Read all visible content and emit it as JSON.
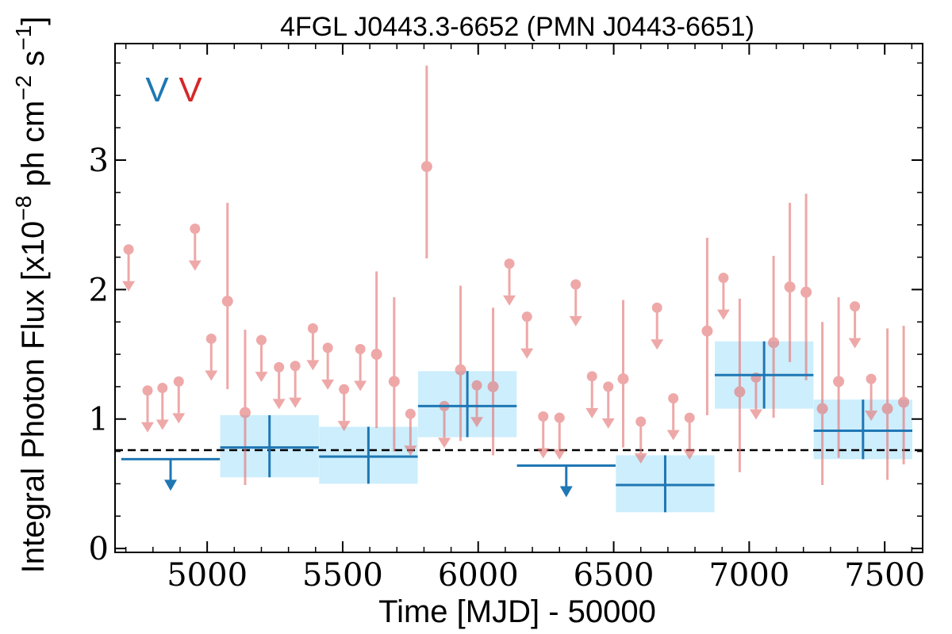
{
  "chart_data": {
    "type": "scatter",
    "title": "4FGL J0443.3-6652 (PMN J0443-6651)",
    "xlabel": "Time [MJD] - 50000",
    "ylabel_parts": {
      "main": "Integral Photon Flux [x10",
      "exp1": "−8",
      "mid": " ph cm",
      "exp2": "−2",
      "end": " s",
      "exp3": "−1",
      "close": "]"
    },
    "xlim": [
      4660,
      7640
    ],
    "ylim": [
      -0.03,
      3.9
    ],
    "x_ticks": [
      5000,
      5500,
      6000,
      6500,
      7000,
      7500
    ],
    "x_tick_labels": [
      "5000",
      "5500",
      "6000",
      "6500",
      "7000",
      "7500"
    ],
    "y_ticks": [
      0,
      1,
      2,
      3
    ],
    "y_tick_labels": [
      "0",
      "1",
      "2",
      "3"
    ],
    "legend": [
      {
        "label": "V",
        "color": "#1f77b4"
      },
      {
        "label": "V",
        "color": "#d62728"
      }
    ],
    "reference_flux": 0.76,
    "yearly": {
      "color": "#1f77b4",
      "band_color": "#cdeefc",
      "detections": [
        {
          "x": 5230,
          "x_err": 182,
          "y": 0.78,
          "y_lo": 0.55,
          "y_hi": 1.03
        },
        {
          "x": 5595,
          "x_err": 182,
          "y": 0.71,
          "y_lo": 0.5,
          "y_hi": 0.94
        },
        {
          "x": 5960,
          "x_err": 182,
          "y": 1.1,
          "y_lo": 0.86,
          "y_hi": 1.37
        },
        {
          "x": 6690,
          "x_err": 182,
          "y": 0.49,
          "y_lo": 0.28,
          "y_hi": 0.72
        },
        {
          "x": 7055,
          "x_err": 182,
          "y": 1.34,
          "y_lo": 1.08,
          "y_hi": 1.6
        },
        {
          "x": 7420,
          "x_err": 182,
          "y": 0.91,
          "y_lo": 0.69,
          "y_hi": 1.15
        }
      ],
      "upper_limits": [
        {
          "x": 4865,
          "x_err": 182,
          "y": 0.69
        },
        {
          "x": 6325,
          "x_err": 182,
          "y": 0.64
        }
      ]
    },
    "monthly": {
      "color": "#e57373",
      "detections": [
        {
          "x": 5075,
          "y": 1.91,
          "y_lo": 1.23,
          "y_hi": 2.67
        },
        {
          "x": 5140,
          "y": 1.05,
          "y_lo": 0.49,
          "y_hi": 1.69
        },
        {
          "x": 5625,
          "y": 1.5,
          "y_lo": 0.93,
          "y_hi": 2.14
        },
        {
          "x": 5690,
          "y": 1.29,
          "y_lo": 0.75,
          "y_hi": 1.94
        },
        {
          "x": 5810,
          "y": 2.95,
          "y_lo": 2.24,
          "y_hi": 3.73
        },
        {
          "x": 5935,
          "y": 1.38,
          "y_lo": 0.83,
          "y_hi": 2.03
        },
        {
          "x": 6055,
          "y": 1.25,
          "y_lo": 0.72,
          "y_hi": 1.86
        },
        {
          "x": 6535,
          "y": 1.31,
          "y_lo": 0.78,
          "y_hi": 1.92
        },
        {
          "x": 6845,
          "y": 1.68,
          "y_lo": 1.03,
          "y_hi": 2.4
        },
        {
          "x": 6965,
          "y": 1.21,
          "y_lo": 0.59,
          "y_hi": 1.93
        },
        {
          "x": 7090,
          "y": 1.59,
          "y_lo": 1.01,
          "y_hi": 2.26
        },
        {
          "x": 7150,
          "y": 2.02,
          "y_lo": 1.44,
          "y_hi": 2.67
        },
        {
          "x": 7210,
          "y": 1.98,
          "y_lo": 1.3,
          "y_hi": 2.74
        },
        {
          "x": 7270,
          "y": 1.08,
          "y_lo": 0.49,
          "y_hi": 1.75
        },
        {
          "x": 7330,
          "y": 1.29,
          "y_lo": 0.7,
          "y_hi": 1.94
        },
        {
          "x": 7510,
          "y": 1.08,
          "y_lo": 0.53,
          "y_hi": 1.7
        },
        {
          "x": 7570,
          "y": 1.13,
          "y_lo": 0.65,
          "y_hi": 1.72
        }
      ],
      "upper_limits": [
        {
          "x": 4710,
          "y": 2.31
        },
        {
          "x": 4780,
          "y": 1.22
        },
        {
          "x": 4835,
          "y": 1.24
        },
        {
          "x": 4895,
          "y": 1.29
        },
        {
          "x": 4955,
          "y": 2.47
        },
        {
          "x": 5015,
          "y": 1.62
        },
        {
          "x": 5200,
          "y": 1.61
        },
        {
          "x": 5265,
          "y": 1.4
        },
        {
          "x": 5325,
          "y": 1.41
        },
        {
          "x": 5390,
          "y": 1.7
        },
        {
          "x": 5445,
          "y": 1.55
        },
        {
          "x": 5505,
          "y": 1.23
        },
        {
          "x": 5565,
          "y": 1.54
        },
        {
          "x": 5750,
          "y": 1.04
        },
        {
          "x": 5875,
          "y": 1.1
        },
        {
          "x": 5995,
          "y": 1.26
        },
        {
          "x": 6115,
          "y": 2.2
        },
        {
          "x": 6180,
          "y": 1.79
        },
        {
          "x": 6240,
          "y": 1.02
        },
        {
          "x": 6300,
          "y": 1.01
        },
        {
          "x": 6360,
          "y": 2.04
        },
        {
          "x": 6420,
          "y": 1.33
        },
        {
          "x": 6480,
          "y": 1.25
        },
        {
          "x": 6600,
          "y": 0.98
        },
        {
          "x": 6660,
          "y": 1.86
        },
        {
          "x": 6720,
          "y": 1.16
        },
        {
          "x": 6780,
          "y": 1.01
        },
        {
          "x": 6905,
          "y": 2.09
        },
        {
          "x": 7025,
          "y": 1.32
        },
        {
          "x": 7390,
          "y": 1.87
        },
        {
          "x": 7450,
          "y": 1.31
        }
      ]
    }
  }
}
